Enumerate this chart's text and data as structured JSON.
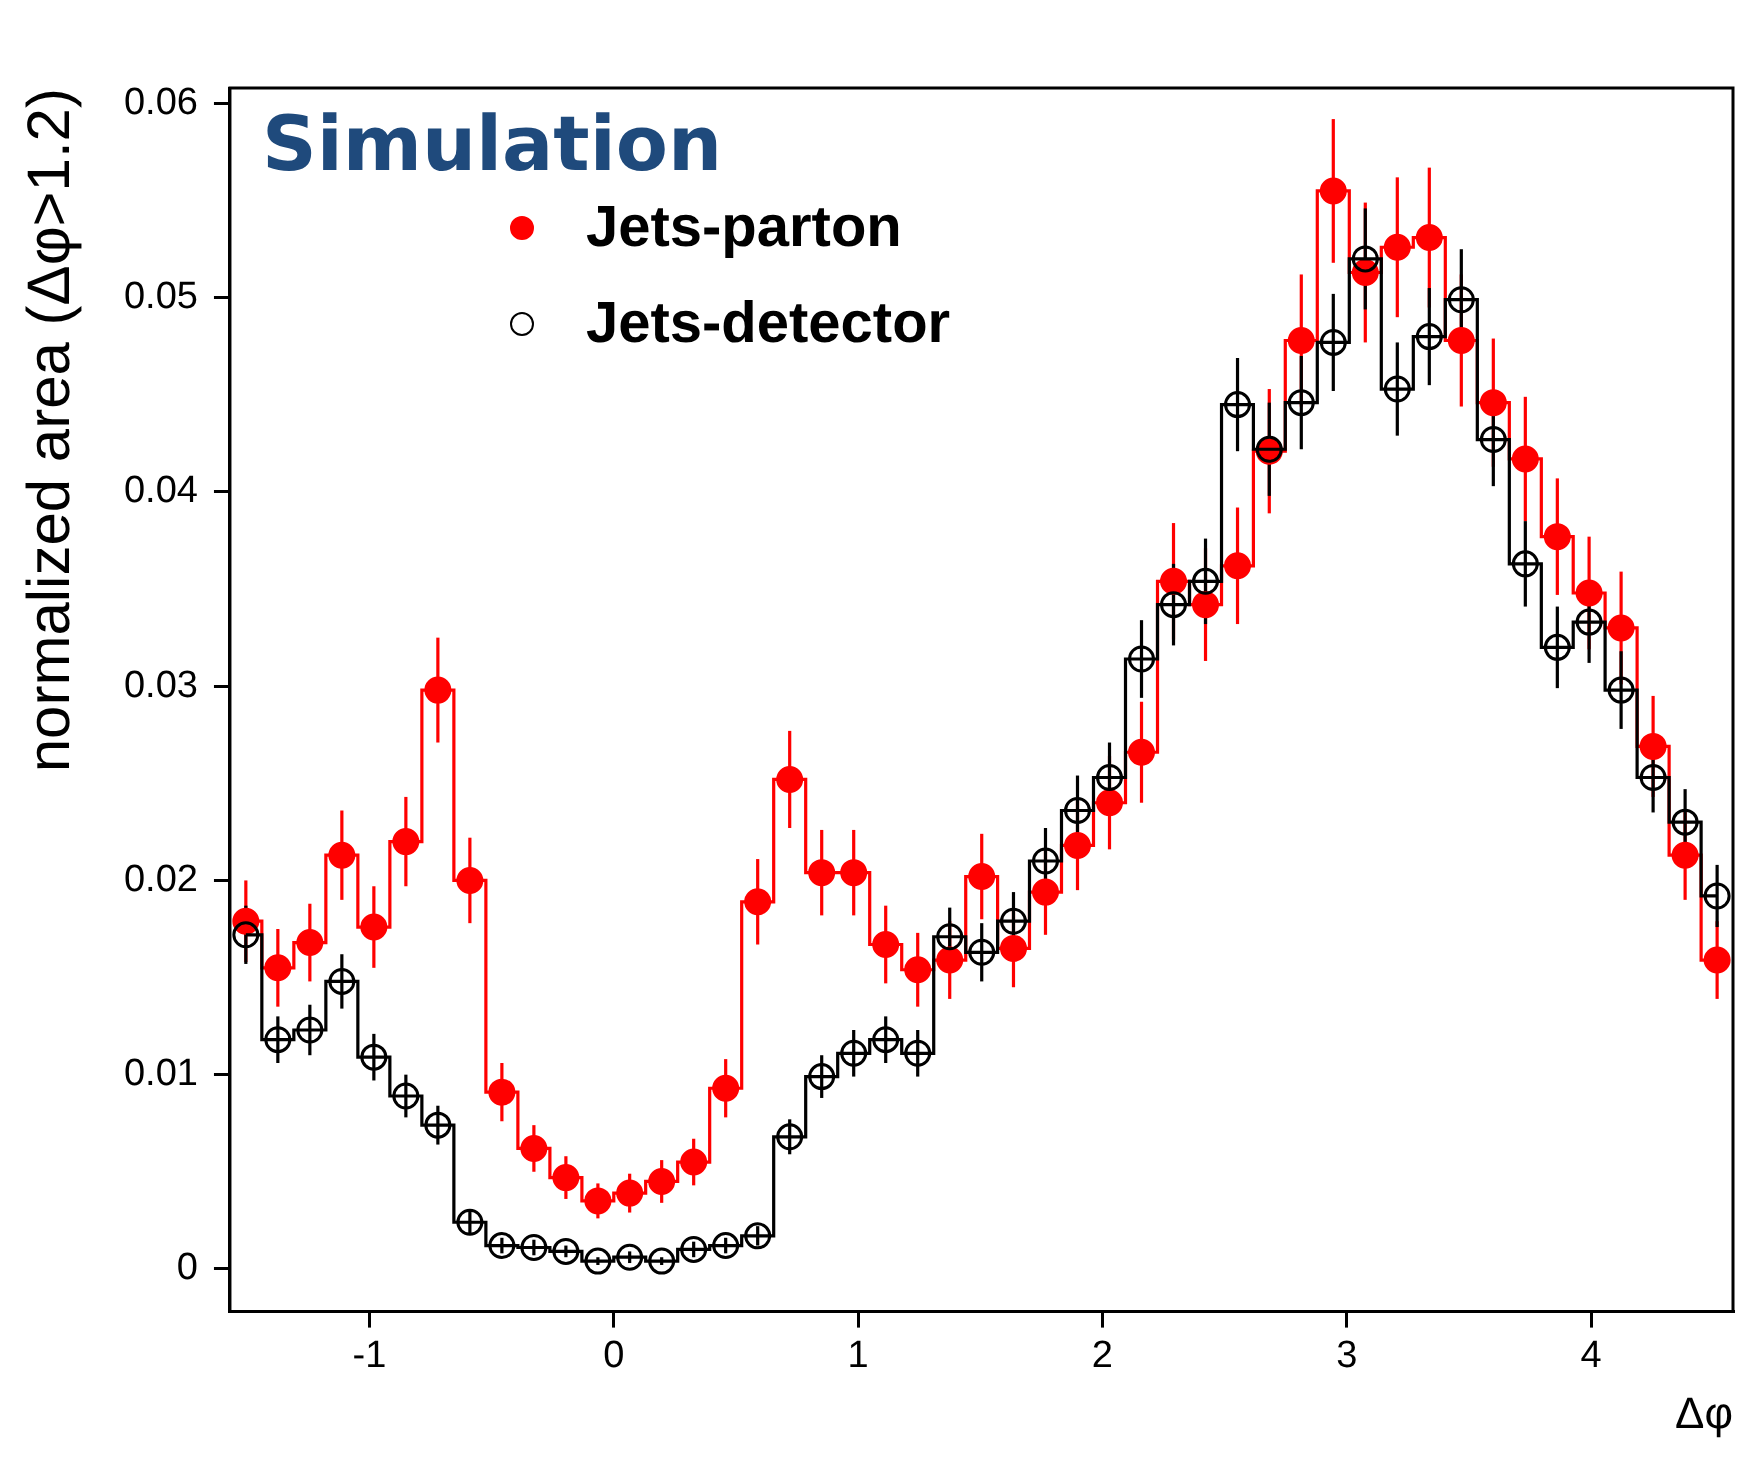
{
  "chart_data": {
    "type": "step",
    "ylabel": "normalized area (Δφ>1.2)",
    "xlabel": "Δφ",
    "annotations": [
      "Simulation"
    ],
    "x": [
      -1.506,
      -1.375,
      -1.244,
      -1.113,
      -0.982,
      -0.851,
      -0.72,
      -0.589,
      -0.458,
      -0.327,
      -0.196,
      -0.065,
      0.065,
      0.196,
      0.327,
      0.458,
      0.589,
      0.72,
      0.851,
      0.982,
      1.113,
      1.244,
      1.375,
      1.506,
      1.636,
      1.767,
      1.898,
      2.029,
      2.16,
      2.291,
      2.422,
      2.553,
      2.683,
      2.814,
      2.945,
      3.076,
      3.207,
      3.338,
      3.469,
      3.6,
      3.731,
      3.862,
      3.992,
      4.123,
      4.254,
      4.385,
      4.516
    ],
    "series": [
      {
        "name": "Jets-parton",
        "color": "#ff0000",
        "values": [
          0.0179,
          0.0155,
          0.0168,
          0.0213,
          0.0176,
          0.022,
          0.0298,
          0.02,
          0.0091,
          0.0062,
          0.0047,
          0.0035,
          0.0039,
          0.0045,
          0.0055,
          0.0093,
          0.0189,
          0.0252,
          0.0204,
          0.0204,
          0.0167,
          0.0154,
          0.0159,
          0.0202,
          0.0165,
          0.0194,
          0.0218,
          0.024,
          0.0266,
          0.0354,
          0.0342,
          0.0362,
          0.0421,
          0.0478,
          0.0555,
          0.0513,
          0.0526,
          0.0531,
          0.0478,
          0.0446,
          0.0417,
          0.0377,
          0.0348,
          0.033,
          0.0269,
          0.0213,
          0.0159
        ],
        "errors": [
          0.0021,
          0.002,
          0.002,
          0.0023,
          0.0021,
          0.0023,
          0.0027,
          0.0022,
          0.0015,
          0.0012,
          0.0011,
          0.0009,
          0.001,
          0.0011,
          0.0012,
          0.0015,
          0.0022,
          0.0025,
          0.0022,
          0.0022,
          0.002,
          0.0019,
          0.002,
          0.0022,
          0.002,
          0.0022,
          0.0023,
          0.0024,
          0.0026,
          0.003,
          0.0029,
          0.003,
          0.0032,
          0.0034,
          0.0037,
          0.0036,
          0.0036,
          0.0036,
          0.0034,
          0.0033,
          0.0032,
          0.003,
          0.0029,
          0.0029,
          0.0026,
          0.0023,
          0.002
        ]
      },
      {
        "name": "Jets-detector",
        "color": "#000000",
        "values": [
          0.0172,
          0.0118,
          0.0123,
          0.0148,
          0.0109,
          0.0089,
          0.0074,
          0.0024,
          0.0012,
          0.0011,
          0.0009,
          0.0004,
          0.0006,
          0.0004,
          0.001,
          0.0012,
          0.0017,
          0.0068,
          0.0099,
          0.0111,
          0.0118,
          0.0111,
          0.0171,
          0.0163,
          0.0179,
          0.021,
          0.0236,
          0.0253,
          0.0314,
          0.0342,
          0.0354,
          0.0445,
          0.0422,
          0.0446,
          0.0477,
          0.052,
          0.0453,
          0.048,
          0.0499,
          0.0427,
          0.0363,
          0.032,
          0.0333,
          0.0298,
          0.0253,
          0.023,
          0.0192
        ],
        "errors": [
          0.0015,
          0.0012,
          0.0013,
          0.0014,
          0.0012,
          0.0011,
          0.001,
          0.0006,
          0.0004,
          0.0004,
          0.0003,
          0.0002,
          0.0003,
          0.0002,
          0.0004,
          0.0004,
          0.0005,
          0.0009,
          0.0011,
          0.0012,
          0.0012,
          0.0012,
          0.0015,
          0.0015,
          0.0015,
          0.0017,
          0.0018,
          0.0018,
          0.002,
          0.0021,
          0.0022,
          0.0024,
          0.0024,
          0.0024,
          0.0025,
          0.0026,
          0.0024,
          0.0025,
          0.0026,
          0.0024,
          0.0022,
          0.0021,
          0.0021,
          0.002,
          0.0018,
          0.0017,
          0.0016
        ]
      }
    ],
    "xlim": [
      -1.571,
      4.581
    ],
    "ylim": [
      -0.0022,
      0.0608
    ],
    "xticks": [
      -1,
      0,
      1,
      2,
      3,
      4
    ],
    "yticks": [
      0,
      0.01,
      0.02,
      0.03,
      0.04,
      0.05,
      0.06
    ],
    "marker": "circle",
    "legend": "top left"
  }
}
